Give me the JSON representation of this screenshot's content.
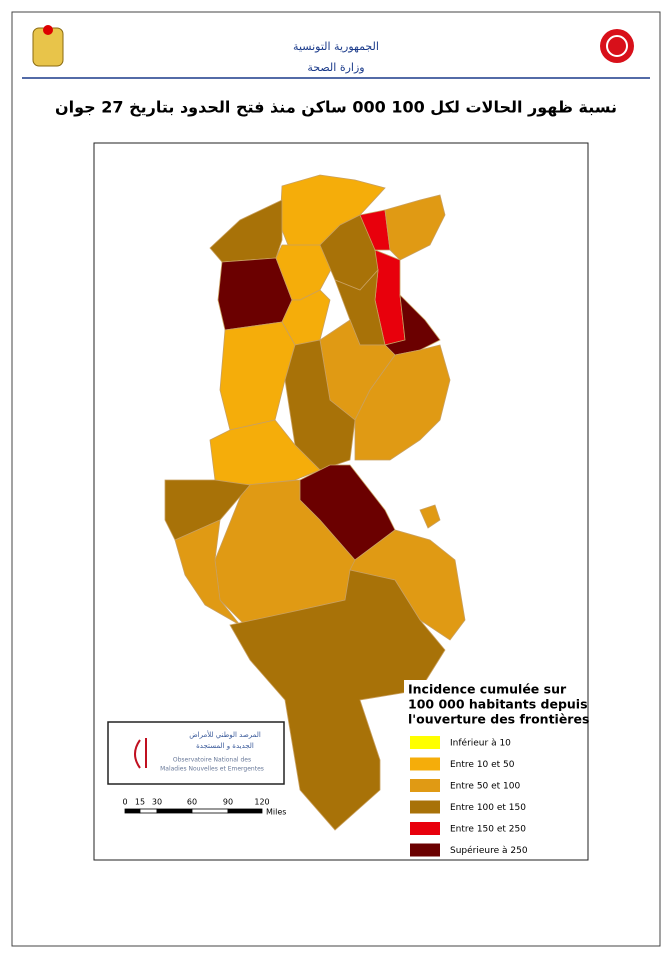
{
  "header": {
    "country": "الجمهورية التونسية",
    "ministry": "وزارة الصحة"
  },
  "title": "نسبة ظهور الحالات لكل 100 000 ساكن منذ فتح الحدود بتاريخ 27 جوان",
  "legend": {
    "title": [
      "Incidence cumulée sur",
      "100 000 habitants depuis",
      "l'ouverture des frontières"
    ],
    "items": [
      {
        "label": "Inférieur à 10",
        "color": "#ffff00"
      },
      {
        "label": "Entre 10 et 50",
        "color": "#f5ad0a"
      },
      {
        "label": "Entre 50 et 100",
        "color": "#e09a14"
      },
      {
        "label": "Entre 100 et 150",
        "color": "#a87208"
      },
      {
        "label": "Entre 150 et 250",
        "color": "#e8000c"
      },
      {
        "label": "Supérieure à 250",
        "color": "#6b0000"
      }
    ]
  },
  "logo": {
    "arabic": [
      "المرصد الوطني للأمراض",
      "الجديدة و المستجدة"
    ],
    "french": [
      "Observatoire National des",
      "Maladies Nouvelles et Emergentes"
    ]
  },
  "scale": {
    "ticks": [
      "0",
      "15",
      "30",
      "60",
      "90",
      "120"
    ],
    "unit": "Miles"
  }
}
